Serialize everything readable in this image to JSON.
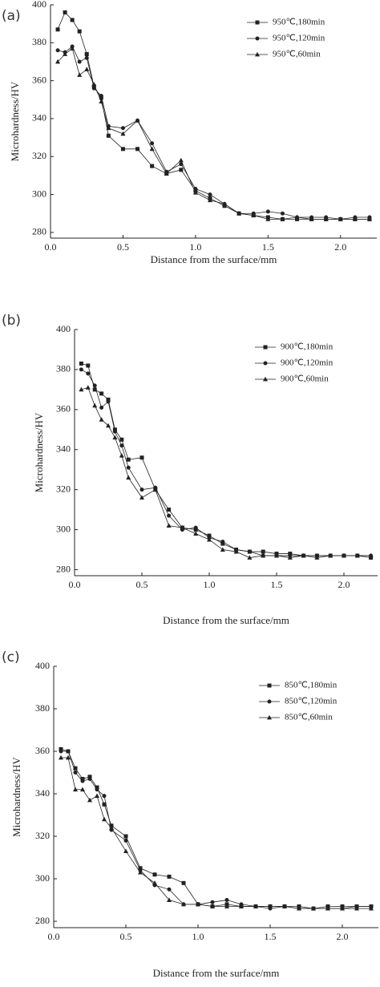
{
  "chart_data": [
    {
      "type": "line",
      "title": "(a)",
      "xlabel": "Distance from the surface/mm",
      "ylabel": "Microhardness/HV",
      "x": [
        0.05,
        0.1,
        0.15,
        0.2,
        0.25,
        0.3,
        0.35,
        0.4,
        0.5,
        0.6,
        0.7,
        0.8,
        0.9,
        1.0,
        1.1,
        1.2,
        1.3,
        1.4,
        1.5,
        1.6,
        1.7,
        1.8,
        1.9,
        2.0,
        2.1,
        2.2
      ],
      "series": [
        {
          "name": "950℃,180min",
          "color": "#222222",
          "marker": "square",
          "values": [
            387,
            396,
            392,
            386,
            374,
            357,
            351,
            331,
            324,
            324,
            315,
            311,
            313,
            302,
            298,
            294,
            290,
            289,
            288,
            287,
            287,
            287,
            287,
            287,
            287,
            287
          ]
        },
        {
          "name": "950℃,120min",
          "color": "#222222",
          "marker": "circle",
          "values": [
            376,
            375,
            378,
            370,
            372,
            356,
            352,
            336,
            335,
            339,
            327,
            312,
            316,
            303,
            300,
            295,
            290,
            290,
            291,
            290,
            288,
            288,
            288,
            287,
            288,
            288
          ]
        },
        {
          "name": "950℃,60min",
          "color": "#222222",
          "marker": "triangle",
          "values": [
            370,
            374,
            377,
            363,
            366,
            358,
            349,
            335,
            332,
            339,
            324,
            311,
            318,
            301,
            297,
            295,
            290,
            289,
            287,
            287,
            288,
            287,
            287,
            287,
            287,
            287
          ]
        }
      ],
      "xlim": [
        0,
        2.25
      ],
      "ylim": [
        277,
        400
      ],
      "xticks": [
        {
          "value": 0,
          "label": "0.0"
        },
        0.5,
        {
          "value": 1,
          "label": "1.0"
        },
        1.5,
        {
          "value": 2,
          "label": "2.0"
        }
      ],
      "yticks": [
        280,
        300,
        320,
        340,
        360,
        380,
        400
      ]
    },
    {
      "type": "line",
      "title": "(b)",
      "xlabel": "Distance from the surface/mm",
      "ylabel": "Microhardness/HV",
      "x": [
        0.05,
        0.1,
        0.15,
        0.2,
        0.25,
        0.3,
        0.35,
        0.4,
        0.5,
        0.6,
        0.7,
        0.8,
        0.9,
        1.0,
        1.1,
        1.2,
        1.3,
        1.4,
        1.5,
        1.6,
        1.7,
        1.8,
        1.9,
        2.0,
        2.1,
        2.2
      ],
      "series": [
        {
          "name": "900℃,180min",
          "color": "#222222",
          "marker": "square",
          "values": [
            383,
            382,
            370,
            368,
            365,
            350,
            345,
            335,
            336,
            320,
            310,
            301,
            300,
            297,
            293,
            290,
            289,
            289,
            288,
            288,
            287,
            287,
            287,
            287,
            287,
            286
          ]
        },
        {
          "name": "900℃,120min",
          "color": "#222222",
          "marker": "circle",
          "values": [
            380,
            378,
            372,
            361,
            364,
            349,
            342,
            331,
            320,
            321,
            307,
            300,
            301,
            296,
            294,
            290,
            289,
            287,
            287,
            287,
            287,
            287,
            287,
            287,
            287,
            287
          ]
        },
        {
          "name": "900℃,60min",
          "color": "#222222",
          "marker": "triangle",
          "values": [
            370,
            371,
            362,
            355,
            352,
            346,
            337,
            326,
            316,
            320,
            302,
            301,
            298,
            295,
            290,
            289,
            286,
            287,
            287,
            286,
            287,
            286,
            287,
            287,
            287,
            287
          ]
        }
      ],
      "xlim": [
        0,
        2.25
      ],
      "ylim": [
        277,
        400
      ],
      "xticks": [
        {
          "value": 0,
          "label": "0.0"
        },
        0.5,
        {
          "value": 1,
          "label": "1.0"
        },
        1.5,
        {
          "value": 2,
          "label": "2.0"
        }
      ],
      "yticks": [
        280,
        300,
        320,
        340,
        360,
        380,
        400
      ]
    },
    {
      "type": "line",
      "title": "(c)",
      "xlabel": "Distance from the surface/mm",
      "ylabel": "Microhardness/HV",
      "x": [
        0.05,
        0.1,
        0.15,
        0.2,
        0.25,
        0.3,
        0.35,
        0.4,
        0.5,
        0.6,
        0.7,
        0.8,
        0.9,
        1.0,
        1.1,
        1.2,
        1.3,
        1.4,
        1.5,
        1.6,
        1.7,
        1.8,
        1.9,
        2.0,
        2.1,
        2.2
      ],
      "series": [
        {
          "name": "850℃,180min",
          "color": "#222222",
          "marker": "square",
          "values": [
            361,
            360,
            352,
            347,
            348,
            343,
            335,
            325,
            320,
            305,
            302,
            301,
            298,
            288,
            287,
            288,
            287,
            287,
            287,
            287,
            287,
            286,
            287,
            287,
            287,
            287
          ]
        },
        {
          "name": "850℃,120min",
          "color": "#222222",
          "marker": "circle",
          "values": [
            360,
            360,
            350,
            346,
            347,
            342,
            339,
            323,
            318,
            304,
            297,
            295,
            288,
            288,
            289,
            290,
            288,
            287,
            286,
            287,
            286,
            286,
            286,
            286,
            287,
            287
          ]
        },
        {
          "name": "850℃,60min",
          "color": "#222222",
          "marker": "triangle",
          "values": [
            357,
            357,
            342,
            342,
            337,
            339,
            328,
            324,
            313,
            303,
            298,
            290,
            288,
            288,
            287,
            287,
            287,
            287,
            287,
            287,
            286,
            286,
            286,
            286,
            286,
            286
          ]
        }
      ],
      "xlim": [
        0,
        2.25
      ],
      "ylim": [
        277,
        400
      ],
      "xticks": [
        {
          "value": 0,
          "label": "0.0"
        },
        0.5,
        {
          "value": 1,
          "label": "1.0"
        },
        1.5,
        {
          "value": 2,
          "label": "2.0"
        }
      ],
      "yticks": [
        280,
        300,
        320,
        340,
        360,
        380,
        400
      ]
    }
  ]
}
